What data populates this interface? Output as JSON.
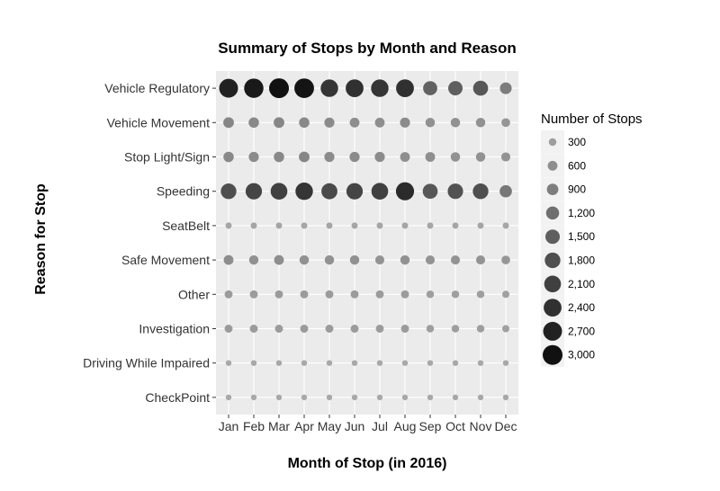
{
  "chart_data": {
    "type": "scatter",
    "title": "Summary of Stops by Month and Reason",
    "xlabel": "Month of Stop (in 2016)",
    "ylabel": "Reason for Stop",
    "months": [
      "Jan",
      "Feb",
      "Mar",
      "Apr",
      "May",
      "Jun",
      "Jul",
      "Aug",
      "Sep",
      "Oct",
      "Nov",
      "Dec"
    ],
    "reasons": [
      "Vehicle Regulatory",
      "Vehicle Movement",
      "Stop Light/Sign",
      "Speeding",
      "SeatBelt",
      "Safe Movement",
      "Other",
      "Investigation",
      "Driving While Impaired",
      "CheckPoint"
    ],
    "series": [
      {
        "reason": "Vehicle Regulatory",
        "values": [
          2700,
          2850,
          3000,
          2950,
          2300,
          2400,
          2300,
          2400,
          1450,
          1500,
          1650,
          950
        ]
      },
      {
        "reason": "Vehicle Movement",
        "values": [
          750,
          700,
          750,
          700,
          650,
          600,
          600,
          650,
          550,
          550,
          550,
          450
        ]
      },
      {
        "reason": "Stop Light/Sign",
        "values": [
          700,
          650,
          700,
          750,
          650,
          650,
          650,
          600,
          600,
          550,
          550,
          500
        ]
      },
      {
        "reason": "Speeding",
        "values": [
          1800,
          2000,
          2100,
          2300,
          1900,
          2000,
          2100,
          2500,
          1650,
          1750,
          1800,
          1050
        ]
      },
      {
        "reason": "SeatBelt",
        "values": [
          150,
          150,
          150,
          150,
          150,
          150,
          150,
          150,
          150,
          150,
          150,
          150
        ]
      },
      {
        "reason": "Safe Movement",
        "values": [
          600,
          550,
          600,
          550,
          550,
          550,
          500,
          550,
          500,
          500,
          500,
          450
        ]
      },
      {
        "reason": "Other",
        "values": [
          350,
          350,
          350,
          350,
          350,
          350,
          350,
          350,
          300,
          300,
          300,
          250
        ]
      },
      {
        "reason": "Investigation",
        "values": [
          350,
          350,
          350,
          350,
          350,
          350,
          350,
          350,
          300,
          300,
          300,
          250
        ]
      },
      {
        "reason": "Driving While Impaired",
        "values": [
          100,
          100,
          100,
          100,
          100,
          100,
          100,
          100,
          100,
          100,
          100,
          100
        ]
      },
      {
        "reason": "CheckPoint",
        "values": [
          100,
          100,
          100,
          100,
          100,
          100,
          100,
          100,
          100,
          100,
          100,
          100
        ]
      }
    ],
    "size_legend": {
      "title": "Number of Stops",
      "values": [
        300,
        600,
        900,
        1200,
        1500,
        1800,
        2100,
        2400,
        2700,
        3000
      ],
      "labels": [
        "300",
        "600",
        "900",
        "1,200",
        "1,500",
        "1,800",
        "2,100",
        "2,400",
        "2,700",
        "3,000"
      ]
    },
    "size_range": [
      100,
      3000
    ],
    "grid": true,
    "legend_position": "right",
    "colors": {
      "panel_background": "#ebebeb",
      "grid": "#ffffff",
      "point_light": "#a8a8a8",
      "point_dark": "#111111"
    }
  }
}
